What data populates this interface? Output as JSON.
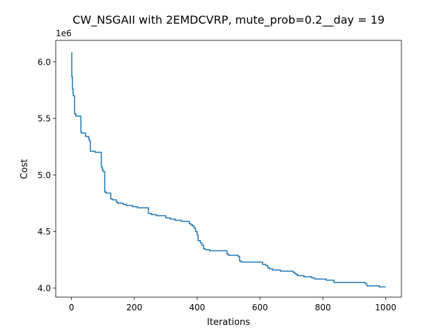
{
  "chart_data": {
    "type": "line",
    "title": "CW_NSGAII with 2EMDCVRP, mute_prob=0.2__day = 19",
    "xlabel": "Iterations",
    "ylabel": "Cost",
    "y_offset_label": "1e6",
    "y_scale": 1000000,
    "xlim": [
      -50,
      1050
    ],
    "ylim": [
      3920000,
      6190000
    ],
    "x_ticks": [
      0,
      200,
      400,
      600,
      800,
      1000
    ],
    "x_tick_labels": [
      "0",
      "200",
      "400",
      "600",
      "800",
      "1000"
    ],
    "y_ticks": [
      4000000,
      4500000,
      5000000,
      5500000,
      6000000
    ],
    "y_tick_labels": [
      "4.0",
      "4.5",
      "5.0",
      "5.5",
      "6.0"
    ],
    "grid": false,
    "legend": "none",
    "series": [
      {
        "color": "#1f77b4",
        "step": true,
        "x": [
          0,
          1,
          3,
          5,
          6,
          10,
          14,
          30,
          32,
          45,
          55,
          57,
          60,
          63,
          75,
          95,
          98,
          100,
          103,
          106,
          110,
          125,
          130,
          143,
          148,
          165,
          175,
          195,
          210,
          245,
          255,
          270,
          300,
          315,
          330,
          350,
          375,
          380,
          385,
          390,
          395,
          400,
          403,
          410,
          415,
          420,
          425,
          440,
          455,
          475,
          495,
          500,
          515,
          530,
          535,
          540,
          600,
          608,
          618,
          620,
          625,
          630,
          640,
          665,
          680,
          705,
          710,
          715,
          720,
          740,
          745,
          765,
          775,
          790,
          810,
          830,
          835,
          840,
          880,
          910,
          935,
          940,
          955,
          960,
          980,
          990,
          1000
        ],
        "y": [
          6080000,
          5870000,
          5760000,
          5720000,
          5700000,
          5540000,
          5520000,
          5380000,
          5370000,
          5340000,
          5320000,
          5300000,
          5210000,
          5210000,
          5200000,
          5070000,
          5050000,
          5030000,
          5030000,
          4850000,
          4840000,
          4790000,
          4780000,
          4760000,
          4750000,
          4740000,
          4730000,
          4720000,
          4710000,
          4660000,
          4650000,
          4640000,
          4620000,
          4610000,
          4600000,
          4590000,
          4570000,
          4560000,
          4550000,
          4530000,
          4500000,
          4470000,
          4420000,
          4400000,
          4380000,
          4350000,
          4340000,
          4330000,
          4330000,
          4330000,
          4300000,
          4290000,
          4290000,
          4280000,
          4240000,
          4230000,
          4230000,
          4210000,
          4200000,
          4200000,
          4180000,
          4170000,
          4160000,
          4150000,
          4150000,
          4140000,
          4130000,
          4120000,
          4110000,
          4100000,
          4100000,
          4090000,
          4080000,
          4080000,
          4070000,
          4070000,
          4050000,
          4050000,
          4050000,
          4050000,
          4040000,
          4020000,
          4020000,
          4020000,
          4010000,
          4010000,
          4010000
        ]
      }
    ]
  }
}
